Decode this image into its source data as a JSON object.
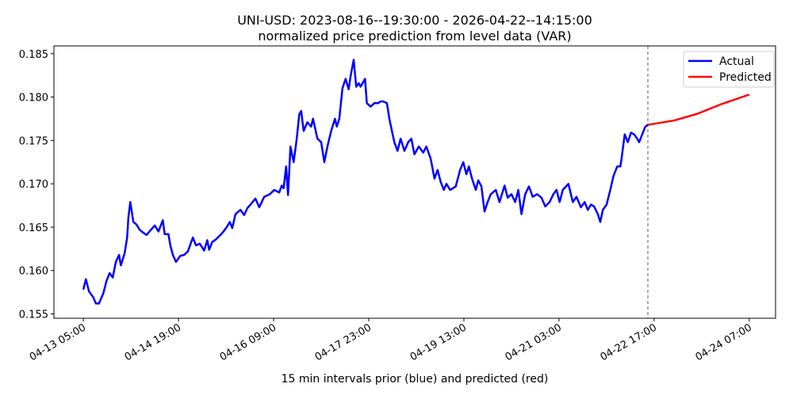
{
  "chart_data": {
    "type": "line",
    "title": "UNI-USD: 2023-08-16--19:30:00 - 2026-04-22--14:15:00",
    "subtitle": "normalized price prediction from level data (VAR)",
    "xlabel": "15 min intervals prior (blue) and predicted (red)",
    "ylabel": "",
    "xlim": [
      -47,
      1106
    ],
    "ylim": [
      0.1545,
      0.1859
    ],
    "grid": false,
    "legend_position": "top-right",
    "divider_index": 902,
    "x_ticks": [
      {
        "index": 0,
        "label": "04-13 05:00"
      },
      {
        "index": 152,
        "label": "04-14 19:00"
      },
      {
        "index": 304,
        "label": "04-16 09:00"
      },
      {
        "index": 456,
        "label": "04-17 23:00"
      },
      {
        "index": 608,
        "label": "04-19 13:00"
      },
      {
        "index": 760,
        "label": "04-21 03:00"
      },
      {
        "index": 912,
        "label": "04-22 17:00"
      },
      {
        "index": 1064,
        "label": "04-24 07:00"
      }
    ],
    "y_ticks": [
      {
        "value": 0.155,
        "label": "0.155"
      },
      {
        "value": 0.16,
        "label": "0.160"
      },
      {
        "value": 0.165,
        "label": "0.165"
      },
      {
        "value": 0.17,
        "label": "0.170"
      },
      {
        "value": 0.175,
        "label": "0.175"
      },
      {
        "value": 0.18,
        "label": "0.180"
      },
      {
        "value": 0.185,
        "label": "0.185"
      }
    ],
    "series": [
      {
        "name": "Actual",
        "color": "#0000ff",
        "x": [
          0,
          4,
          9,
          16,
          20,
          25,
          32,
          37,
          42,
          47,
          52,
          57,
          60,
          66,
          70,
          72,
          75,
          80,
          85,
          90,
          95,
          101,
          108,
          114,
          120,
          127,
          130,
          136,
          139,
          143,
          148,
          155,
          161,
          167,
          175,
          180,
          186,
          193,
          198,
          201,
          206,
          212,
          219,
          224,
          229,
          234,
          238,
          243,
          251,
          257,
          262,
          267,
          275,
          281,
          289,
          298,
          305,
          313,
          317,
          320,
          324,
          327,
          331,
          336,
          341,
          345,
          348,
          352,
          358,
          364,
          367,
          374,
          380,
          385,
          390,
          396,
          402,
          405,
          409,
          414,
          419,
          424,
          427,
          432,
          436,
          440,
          443,
          450,
          453,
          459,
          465,
          471,
          475,
          479,
          485,
          489,
          493,
          497,
          502,
          507,
          513,
          519,
          524,
          529,
          536,
          543,
          548,
          555,
          561,
          566,
          571,
          576,
          580,
          586,
          595,
          602,
          607,
          612,
          616,
          621,
          627,
          631,
          636,
          641,
          646,
          651,
          659,
          665,
          673,
          678,
          684,
          690,
          695,
          700,
          706,
          712,
          718,
          725,
          732,
          738,
          745,
          751,
          756,
          761,
          766,
          775,
          782,
          788,
          795,
          801,
          806,
          811,
          816,
          822,
          826,
          830,
          836,
          842,
          847,
          853,
          858,
          860,
          865,
          870,
          875,
          880,
          885,
          888,
          893,
          898,
          902
        ],
        "values": [
          0.1578,
          0.159,
          0.1576,
          0.1569,
          0.1562,
          0.1562,
          0.1574,
          0.1588,
          0.1597,
          0.1592,
          0.161,
          0.1618,
          0.1606,
          0.162,
          0.1638,
          0.1661,
          0.1679,
          0.1656,
          0.1653,
          0.1647,
          0.1644,
          0.1641,
          0.1647,
          0.1652,
          0.1645,
          0.1658,
          0.1642,
          0.1642,
          0.1629,
          0.1618,
          0.161,
          0.1617,
          0.1618,
          0.1622,
          0.1638,
          0.1629,
          0.1631,
          0.1623,
          0.1635,
          0.1624,
          0.1633,
          0.1636,
          0.1641,
          0.1645,
          0.165,
          0.1656,
          0.1649,
          0.1665,
          0.167,
          0.1664,
          0.1672,
          0.1676,
          0.1683,
          0.1673,
          0.1685,
          0.1688,
          0.1693,
          0.169,
          0.1698,
          0.1695,
          0.172,
          0.1687,
          0.1743,
          0.1725,
          0.1752,
          0.178,
          0.1784,
          0.1761,
          0.1771,
          0.1766,
          0.1775,
          0.1752,
          0.1748,
          0.1725,
          0.1743,
          0.1761,
          0.1775,
          0.1766,
          0.1775,
          0.181,
          0.1821,
          0.1809,
          0.1824,
          0.1843,
          0.1812,
          0.1816,
          0.1812,
          0.1821,
          0.1793,
          0.1789,
          0.1793,
          0.1793,
          0.1795,
          0.1795,
          0.1793,
          0.1775,
          0.1761,
          0.1748,
          0.1738,
          0.1752,
          0.1738,
          0.1748,
          0.1752,
          0.1734,
          0.1743,
          0.1736,
          0.1743,
          0.1729,
          0.1706,
          0.1716,
          0.1702,
          0.1693,
          0.17,
          0.1693,
          0.1697,
          0.1716,
          0.1725,
          0.1711,
          0.172,
          0.1706,
          0.1693,
          0.1704,
          0.1697,
          0.1668,
          0.1679,
          0.1688,
          0.1693,
          0.1679,
          0.1698,
          0.1684,
          0.1688,
          0.1679,
          0.1693,
          0.1665,
          0.1688,
          0.1697,
          0.1685,
          0.1688,
          0.1684,
          0.1674,
          0.1679,
          0.1688,
          0.1693,
          0.1679,
          0.1693,
          0.17,
          0.1679,
          0.1685,
          0.1673,
          0.1679,
          0.167,
          0.1676,
          0.1674,
          0.1665,
          0.1656,
          0.167,
          0.1676,
          0.1693,
          0.1709,
          0.172,
          0.172,
          0.1729,
          0.1757,
          0.1748,
          0.1759,
          0.1757,
          0.1752,
          0.1748,
          0.1757,
          0.1766,
          0.1768
        ]
      },
      {
        "name": "Predicted",
        "color": "#ff0000",
        "x": [
          902,
          944,
          982,
          1020,
          1064
        ],
        "values": [
          0.1768,
          0.1773,
          0.1781,
          0.1792,
          0.1803
        ]
      }
    ]
  }
}
